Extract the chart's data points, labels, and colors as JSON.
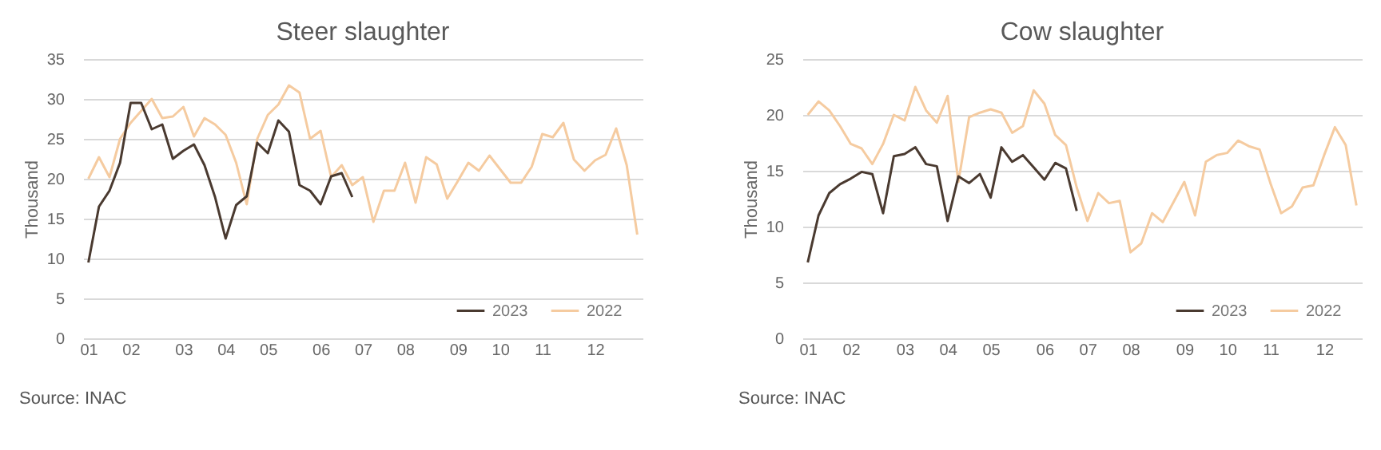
{
  "chart_data": [
    {
      "type": "line",
      "title": "Steer slaughter",
      "ylabel": "Thousand",
      "annotations": [
        "Source: INAC"
      ],
      "categories": [
        "01",
        null,
        null,
        null,
        "02",
        null,
        null,
        null,
        null,
        "03",
        null,
        null,
        null,
        "04",
        null,
        null,
        null,
        "05",
        null,
        null,
        null,
        null,
        "06",
        null,
        null,
        null,
        "07",
        null,
        null,
        null,
        "08",
        null,
        null,
        null,
        null,
        "09",
        null,
        null,
        null,
        "10",
        null,
        null,
        null,
        "11",
        null,
        null,
        null,
        null,
        "12",
        null,
        null,
        null,
        null
      ],
      "ylim": [
        0,
        35
      ],
      "yticks": [
        0,
        5,
        10,
        15,
        20,
        25,
        30,
        35
      ],
      "grid": "y",
      "legend": "bottom right",
      "line_style": "solid",
      "series": [
        {
          "name": "2023",
          "color": "#4a3a30",
          "values": [
            9.5,
            16.5,
            18.5,
            22,
            29.5,
            29.5,
            26.2,
            26.8,
            22.5,
            23.5,
            24.3,
            21.7,
            17.7,
            12.5,
            16.7,
            17.8,
            24.5,
            23.2,
            27.3,
            25.9,
            19.2,
            18.5,
            16.8,
            20.3,
            20.7,
            17.7,
            null,
            null,
            null,
            null,
            null,
            null,
            null,
            null,
            null,
            null,
            null,
            null,
            null,
            null,
            null,
            null,
            null,
            null,
            null,
            null,
            null,
            null,
            null,
            null,
            null,
            null,
            null
          ]
        },
        {
          "name": "2022",
          "color": "#f5cba0",
          "values": [
            20,
            22.7,
            20.2,
            25,
            27,
            28.5,
            30,
            27.6,
            27.8,
            29,
            25.3,
            27.6,
            26.8,
            25.5,
            22,
            16.8,
            25,
            28,
            29.3,
            31.7,
            30.8,
            25,
            26,
            20.2,
            21.7,
            19.2,
            20.2,
            14.6,
            18.5,
            18.5,
            22,
            17,
            22.7,
            21.8,
            17.5,
            19.7,
            22,
            21,
            22.9,
            21.2,
            19.5,
            19.5,
            21.5,
            25.6,
            25.2,
            27,
            22.4,
            21,
            22.3,
            23,
            26.3,
            21.7,
            13
          ]
        }
      ]
    },
    {
      "type": "line",
      "title": "Cow slaughter",
      "ylabel": "Thousand",
      "annotations": [
        "Source: INAC"
      ],
      "categories": [
        "01",
        null,
        null,
        null,
        "02",
        null,
        null,
        null,
        null,
        "03",
        null,
        null,
        null,
        "04",
        null,
        null,
        null,
        "05",
        null,
        null,
        null,
        null,
        "06",
        null,
        null,
        null,
        "07",
        null,
        null,
        null,
        "08",
        null,
        null,
        null,
        null,
        "09",
        null,
        null,
        null,
        "10",
        null,
        null,
        null,
        "11",
        null,
        null,
        null,
        null,
        "12",
        null,
        null,
        null
      ],
      "ylim": [
        0,
        25
      ],
      "yticks": [
        0,
        5,
        10,
        15,
        20,
        25
      ],
      "grid": "y",
      "legend": "bottom right",
      "line_style": "solid",
      "series": [
        {
          "name": "2023",
          "color": "#4a3a30",
          "values": [
            6.8,
            11,
            13,
            13.8,
            14.3,
            14.9,
            14.7,
            11.2,
            16.3,
            16.5,
            17.1,
            15.6,
            15.4,
            10.5,
            14.5,
            13.9,
            14.7,
            12.6,
            17.1,
            15.8,
            16.4,
            15.3,
            14.2,
            15.7,
            15.2,
            11.4,
            null,
            null,
            null,
            null,
            null,
            null,
            null,
            null,
            null,
            null,
            null,
            null,
            null,
            null,
            null,
            null,
            null,
            null,
            null,
            null,
            null,
            null,
            null,
            null,
            null,
            null
          ]
        },
        {
          "name": "2022",
          "color": "#f5cba0",
          "values": [
            20,
            21.2,
            20.4,
            19,
            17.4,
            17,
            15.6,
            17.4,
            20,
            19.5,
            22.5,
            20.4,
            19.3,
            21.7,
            14,
            19.8,
            20.2,
            20.5,
            20.2,
            18.4,
            19,
            22.2,
            21,
            18.2,
            17.3,
            13.5,
            10.5,
            13,
            12.1,
            12.3,
            7.7,
            8.5,
            11.2,
            10.4,
            12.2,
            14,
            11,
            15.8,
            16.4,
            16.6,
            17.7,
            17.2,
            16.9,
            13.9,
            11.2,
            11.8,
            13.5,
            13.7,
            16.4,
            18.9,
            17.3,
            11.9
          ]
        }
      ]
    }
  ]
}
